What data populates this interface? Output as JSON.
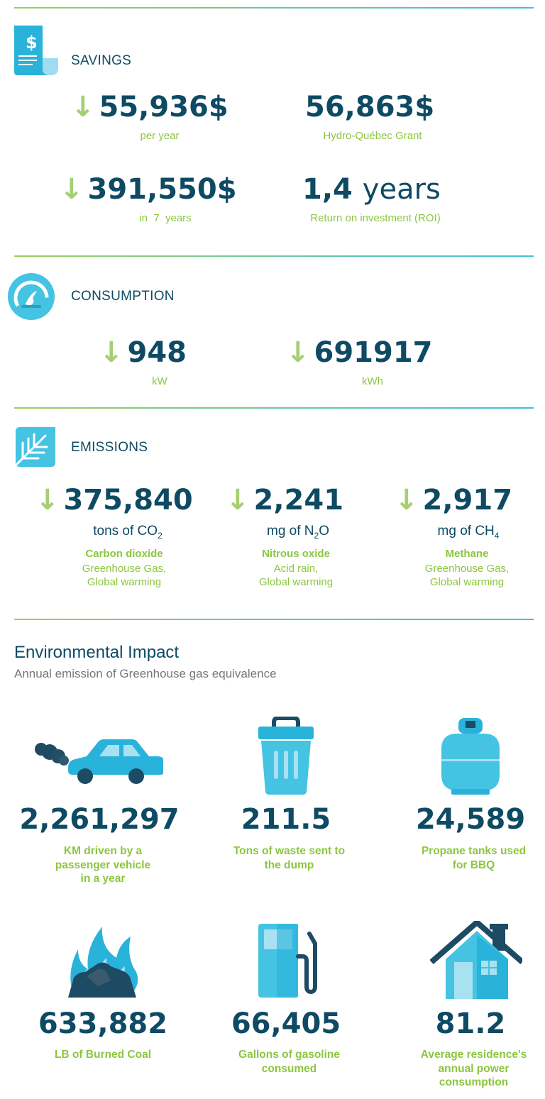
{
  "savings": {
    "title": "SAVINGS",
    "annual_value": "55,936$",
    "annual_label": "per year",
    "grant_value": "56,863$",
    "grant_label": "Hydro-Québec Grant",
    "total_value": "391,550$",
    "total_label": "in  7  years",
    "roi_number": "1,4",
    "roi_unit": "years",
    "roi_label": "Return on investment (ROI)"
  },
  "consumption": {
    "title": "CONSUMPTION",
    "power_value": "948",
    "power_unit": "kW",
    "energy_value": "691917",
    "energy_unit": "kWh"
  },
  "emissions": {
    "title": "EMISSIONS",
    "items": [
      {
        "value": "375,840",
        "unit_prefix": "tons of CO",
        "unit_sub": "2",
        "unit_suffix": "",
        "name": "Carbon dioxide",
        "desc1": "Greenhouse Gas,",
        "desc2": "Global warming"
      },
      {
        "value": "2,241",
        "unit_prefix": "mg of N",
        "unit_sub": "2",
        "unit_suffix": "O",
        "name": "Nitrous oxide",
        "desc1": "Acid rain,",
        "desc2": "Global warming"
      },
      {
        "value": "2,917",
        "unit_prefix": "mg of CH",
        "unit_sub": "4",
        "unit_suffix": "",
        "name": "Methane",
        "desc1": "Greenhouse Gas,",
        "desc2": "Global warming"
      }
    ]
  },
  "impact": {
    "title": "Environmental Impact",
    "subtitle": "Annual emission of Greenhouse gas equivalence",
    "items": [
      {
        "icon": "car-icon",
        "value": "2,261,297",
        "label1": "KM driven by a",
        "label2": "passenger vehicle",
        "label3": "in a year"
      },
      {
        "icon": "trash-can-icon",
        "value": "211.5",
        "label1": "Tons of waste sent to",
        "label2": "the dump",
        "label3": ""
      },
      {
        "icon": "propane-tank-icon",
        "value": "24,589",
        "label1": "Propane tanks used",
        "label2": "for BBQ",
        "label3": ""
      },
      {
        "icon": "burning-coal-icon",
        "value": "633,882",
        "label1": "LB of Burned Coal",
        "label2": "",
        "label3": ""
      },
      {
        "icon": "gas-pump-icon",
        "value": "66,405",
        "label1": "Gallons of gasoline",
        "label2": "consumed",
        "label3": ""
      },
      {
        "icon": "house-icon",
        "value": "81.2",
        "label1": "Average residence's",
        "label2": "annual power",
        "label3": "consumption"
      }
    ]
  },
  "colors": {
    "navy": "#0e4a63",
    "green": "#8cc63f",
    "cyan": "#3fc0dc"
  }
}
